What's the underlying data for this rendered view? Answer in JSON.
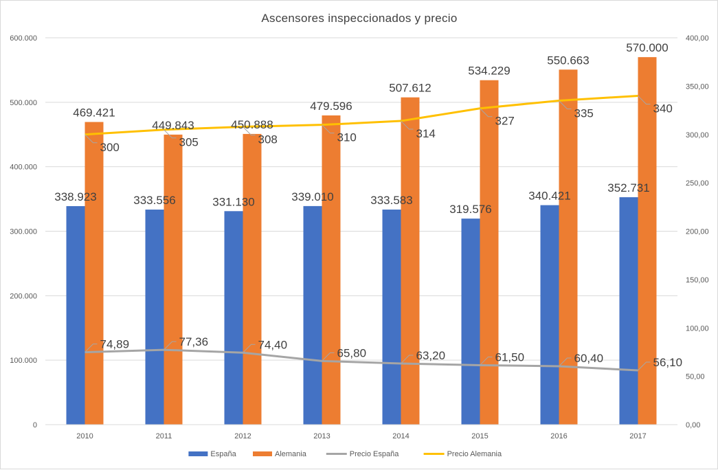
{
  "chart_data": {
    "type": "bar",
    "title": "Ascensores  inspeccionados  y precio",
    "categories": [
      "2010",
      "2011",
      "2012",
      "2013",
      "2014",
      "2015",
      "2016",
      "2017"
    ],
    "series": [
      {
        "name": "España",
        "kind": "bar",
        "axis": "left",
        "color": "#4472c4",
        "values": [
          338923,
          333556,
          331130,
          339010,
          333583,
          319576,
          340421,
          352731
        ],
        "labels": [
          "338.923",
          "333.556",
          "331.130",
          "339.010",
          "333.583",
          "319.576",
          "340.421",
          "352.731"
        ]
      },
      {
        "name": "Alemania",
        "kind": "bar",
        "axis": "left",
        "color": "#ed7d31",
        "values": [
          469421,
          449843,
          450888,
          479596,
          507612,
          534229,
          550663,
          570000
        ],
        "labels": [
          "469.421",
          "449.843",
          "450.888",
          "479.596",
          "507.612",
          "534.229",
          "550.663",
          "570.000"
        ]
      },
      {
        "name": "Precio España",
        "kind": "line",
        "axis": "right",
        "color": "#a5a5a5",
        "values": [
          74.89,
          77.36,
          74.4,
          65.8,
          63.2,
          61.5,
          60.4,
          56.1
        ],
        "labels": [
          "74,89",
          "77,36",
          "74,40",
          "65,80",
          "63,20",
          "61,50",
          "60,40",
          "56,10"
        ]
      },
      {
        "name": "Precio Alemania",
        "kind": "line",
        "axis": "right",
        "color": "#ffc000",
        "values": [
          300,
          305,
          308,
          310,
          314,
          327,
          335,
          340
        ],
        "labels": [
          "300",
          "305",
          "308",
          "310",
          "314",
          "327",
          "335",
          "340"
        ]
      }
    ],
    "ylim_left": [
      0,
      600000
    ],
    "ylim_right": [
      0,
      400
    ],
    "yticks_left": [
      "0",
      "100.000",
      "200.000",
      "300.000",
      "400.000",
      "500.000",
      "600.000"
    ],
    "yticks_right": [
      "0,00",
      "50,00",
      "100,00",
      "150,00",
      "200,00",
      "250,00",
      "300,00",
      "350,00",
      "400,00"
    ],
    "grid": true,
    "legend_position": "bottom"
  }
}
